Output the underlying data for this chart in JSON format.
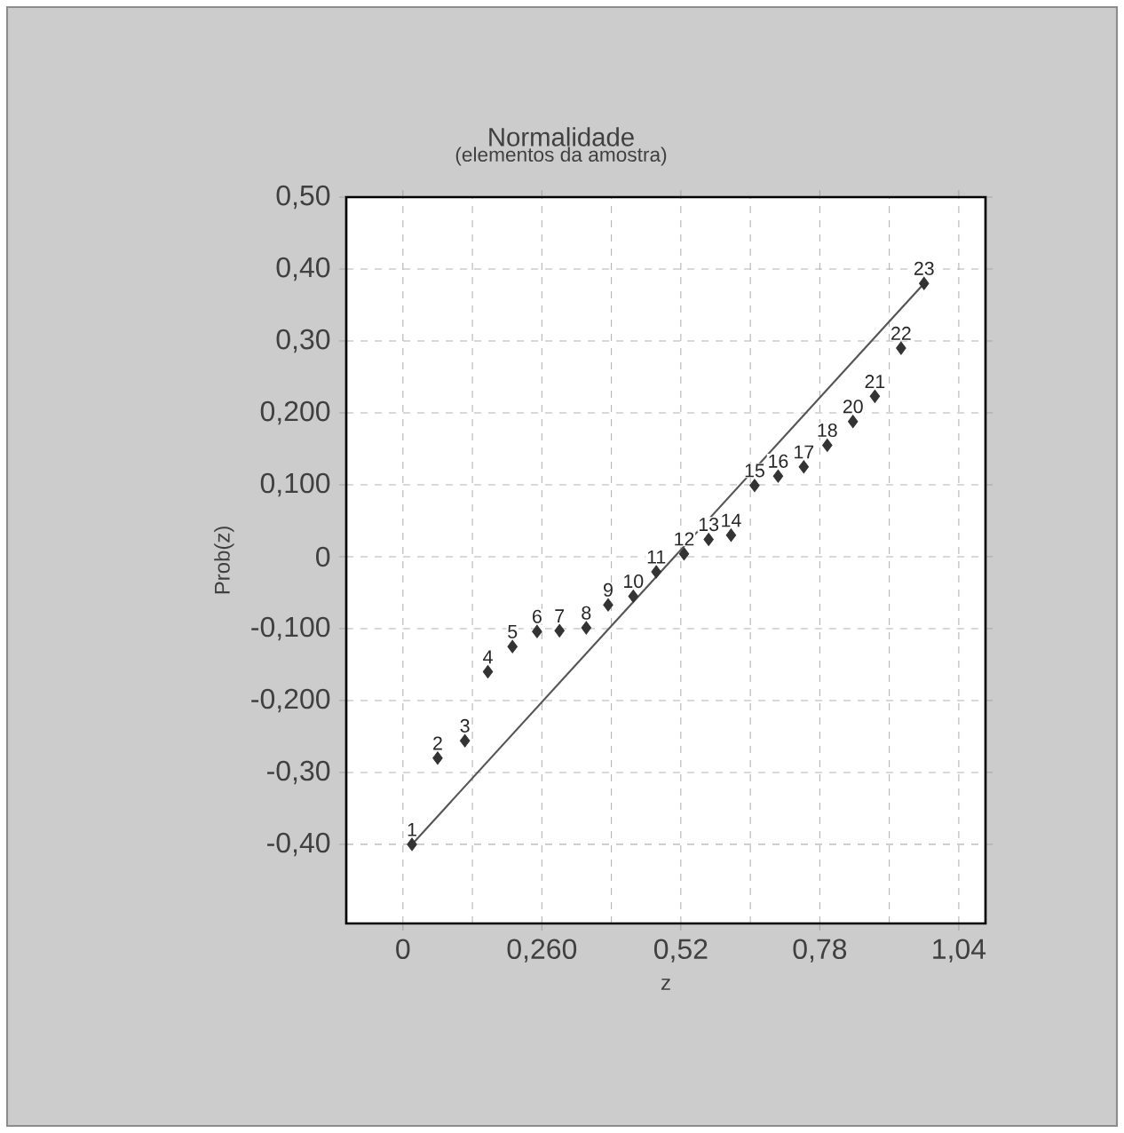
{
  "chart_data": {
    "type": "scatter",
    "title": "Normalidade",
    "subtitle": "(elementos da amostra)",
    "xlabel": "z",
    "ylabel": "Prob(z)",
    "xlim": [
      -0.106,
      1.09
    ],
    "ylim": [
      -0.51,
      0.5
    ],
    "xticks": [
      0,
      {
        "value": 0.26,
        "label": "0,260"
      },
      {
        "value": 0.52,
        "label": "0,52"
      },
      {
        "value": 0.78,
        "label": "0,78"
      },
      {
        "value": 1.04,
        "label": "1,04"
      }
    ],
    "yticks": [
      {
        "value": 0.5,
        "label": "0,50"
      },
      {
        "value": 0.4,
        "label": "0,40"
      },
      {
        "value": 0.3,
        "label": "0,30"
      },
      {
        "value": 0.2,
        "label": "0,200"
      },
      {
        "value": 0.1,
        "label": "0,100"
      },
      0,
      {
        "value": -0.1,
        "label": "-0,100"
      },
      {
        "value": -0.2,
        "label": "-0,200"
      },
      {
        "value": -0.3,
        "label": "-0,30"
      },
      {
        "value": -0.4,
        "label": "-0,40"
      }
    ],
    "grid": true,
    "annotations": [
      {
        "text": "1",
        "x": 0.017,
        "y": -0.4
      },
      {
        "text": "2",
        "x": 0.065,
        "y": -0.28
      },
      {
        "text": "3",
        "x": 0.116,
        "y": -0.256
      },
      {
        "text": "4",
        "x": 0.159,
        "y": -0.16
      },
      {
        "text": "5",
        "x": 0.205,
        "y": -0.125
      },
      {
        "text": "6",
        "x": 0.251,
        "y": -0.104
      },
      {
        "text": "7",
        "x": 0.293,
        "y": -0.103
      },
      {
        "text": "8",
        "x": 0.343,
        "y": -0.099
      },
      {
        "text": "9",
        "x": 0.384,
        "y": -0.067
      },
      {
        "text": "10",
        "x": 0.431,
        "y": -0.055
      },
      {
        "text": "11",
        "x": 0.474,
        "y": -0.021
      },
      {
        "text": "12",
        "x": 0.526,
        "y": 0.004
      },
      {
        "text": "13",
        "x": 0.572,
        "y": 0.024
      },
      {
        "text": "14",
        "x": 0.614,
        "y": 0.03
      },
      {
        "text": "15",
        "x": 0.658,
        "y": 0.099
      },
      {
        "text": "16",
        "x": 0.702,
        "y": 0.112
      },
      {
        "text": "17",
        "x": 0.75,
        "y": 0.125
      },
      {
        "text": "18",
        "x": 0.794,
        "y": 0.155
      },
      {
        "text": "20",
        "x": 0.842,
        "y": 0.188
      },
      {
        "text": "21",
        "x": 0.883,
        "y": 0.223
      },
      {
        "text": "22",
        "x": 0.932,
        "y": 0.29
      },
      {
        "text": "23",
        "x": 0.975,
        "y": 0.38
      }
    ],
    "series": [
      {
        "color": "#333333",
        "marker": "diamond",
        "x": [
          0.017,
          0.065,
          0.116,
          0.159,
          0.205,
          0.251,
          0.293,
          0.343,
          0.384,
          0.431,
          0.474,
          0.526,
          0.572,
          0.614,
          0.658,
          0.702,
          0.75,
          0.794,
          0.842,
          0.883,
          0.932,
          0.975
        ],
        "values": [
          -0.4,
          -0.28,
          -0.256,
          -0.16,
          -0.125,
          -0.104,
          -0.103,
          -0.099,
          -0.067,
          -0.055,
          -0.021,
          0.004,
          0.024,
          0.03,
          0.099,
          0.112,
          0.125,
          0.155,
          0.188,
          0.223,
          0.29,
          0.38
        ]
      },
      {
        "type": "line",
        "color": "#555555",
        "x": [
          0.017,
          0.975
        ],
        "values": [
          -0.4,
          0.38
        ]
      }
    ]
  }
}
